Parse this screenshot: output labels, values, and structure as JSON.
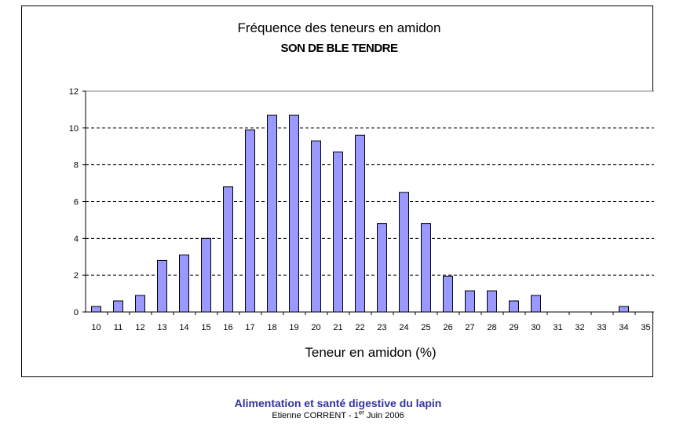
{
  "chart_data": {
    "type": "bar",
    "title": "Fréquence des teneurs en amidon",
    "subtitle": "SON DE BLE TENDRE",
    "xlabel": "Teneur en amidon (%)",
    "ylabel": "",
    "categories": [
      "10",
      "11",
      "12",
      "13",
      "14",
      "15",
      "16",
      "17",
      "18",
      "19",
      "20",
      "21",
      "22",
      "23",
      "24",
      "25",
      "26",
      "27",
      "28",
      "29",
      "30",
      "31",
      "32",
      "33",
      "34",
      "35"
    ],
    "values": [
      0.3,
      0.6,
      0.9,
      2.8,
      3.1,
      4.0,
      6.8,
      9.9,
      10.7,
      10.7,
      9.3,
      8.7,
      9.6,
      4.8,
      6.5,
      4.8,
      1.95,
      1.15,
      1.15,
      0.6,
      0.9,
      0,
      0,
      0,
      0.3,
      0
    ],
    "ylim": [
      0,
      12
    ],
    "yticks": [
      "0",
      "2",
      "4",
      "6",
      "8",
      "10",
      "12"
    ],
    "grid": "horizontal dashed",
    "legend": "none",
    "bar_color": "#9999ff",
    "bar_edge_color": "#000000"
  },
  "footer": {
    "title": "Alimentation et santé digestive du lapin",
    "credit_prefix": "Etienne CORRENT - 1",
    "credit_sup": "er",
    "credit_suffix": " Juin 2006",
    "title_color": "#33339a"
  }
}
